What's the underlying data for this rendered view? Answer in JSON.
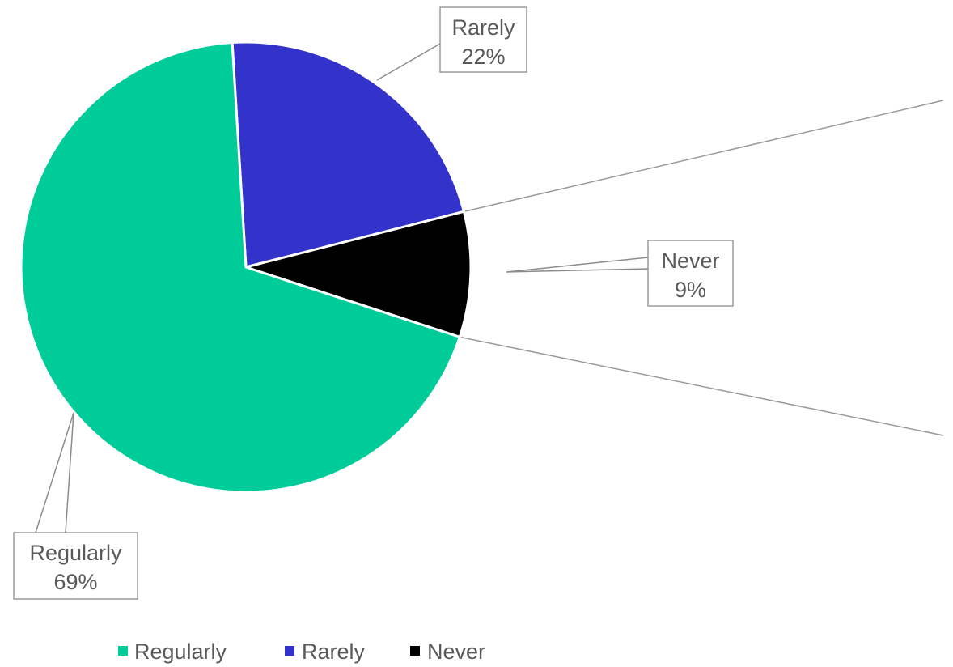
{
  "chart_data": {
    "type": "pie",
    "categories": [
      "Regularly",
      "Rarely",
      "Never"
    ],
    "values": [
      69,
      22,
      9
    ],
    "value_labels": [
      "69%",
      "22%",
      "9%"
    ],
    "colors": [
      "#00cc99",
      "#3333cc",
      "#000000"
    ],
    "title": "",
    "legend_position": "bottom",
    "legend": [
      "Regularly",
      "Rarely",
      "Never"
    ]
  }
}
